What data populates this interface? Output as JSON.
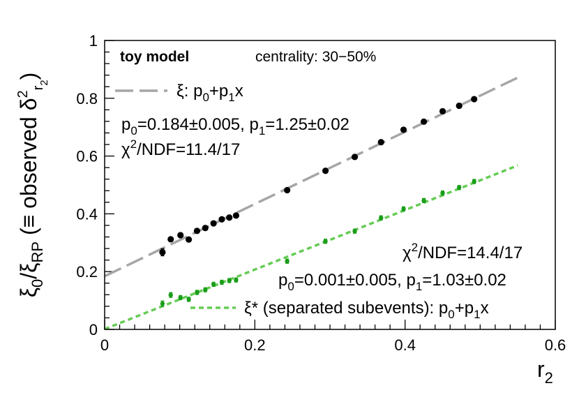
{
  "chart_data": {
    "type": "scatter",
    "xlabel": "r",
    "xlabel_sub": "2",
    "ylabel": "ξ₀/ξ_RP (≡ observed δ²_r₂)",
    "xlim": [
      0,
      0.6
    ],
    "ylim": [
      0,
      1
    ],
    "xticks": [
      {
        "value": 0,
        "label": "0"
      },
      {
        "value": 0.2,
        "label": "0.2"
      },
      {
        "value": 0.4,
        "label": "0.4"
      },
      {
        "value": 0.6,
        "label": "0.6"
      }
    ],
    "yticks": [
      {
        "value": 0,
        "label": "0"
      },
      {
        "value": 0.2,
        "label": "0.2"
      },
      {
        "value": 0.4,
        "label": "0.4"
      },
      {
        "value": 0.6,
        "label": "0.6"
      },
      {
        "value": 0.8,
        "label": "0.8"
      },
      {
        "value": 1,
        "label": "1"
      }
    ],
    "texts": {
      "model": "toy model",
      "centrality": "centrality: 30−50%"
    },
    "series": [
      {
        "name": "xi",
        "color": "#000000",
        "points": [
          {
            "x": 0.077,
            "y": 0.267,
            "err": 0.012
          },
          {
            "x": 0.088,
            "y": 0.312,
            "err": 0.007
          },
          {
            "x": 0.101,
            "y": 0.326,
            "err": 0.007
          },
          {
            "x": 0.112,
            "y": 0.311,
            "err": 0.007
          },
          {
            "x": 0.123,
            "y": 0.341,
            "err": 0.006
          },
          {
            "x": 0.134,
            "y": 0.351,
            "err": 0.006
          },
          {
            "x": 0.145,
            "y": 0.367,
            "err": 0.006
          },
          {
            "x": 0.156,
            "y": 0.381,
            "err": 0.006
          },
          {
            "x": 0.166,
            "y": 0.387,
            "err": 0.006
          },
          {
            "x": 0.175,
            "y": 0.394,
            "err": 0.006
          },
          {
            "x": 0.243,
            "y": 0.482,
            "err": 0.005
          },
          {
            "x": 0.294,
            "y": 0.549,
            "err": 0.005
          },
          {
            "x": 0.333,
            "y": 0.597,
            "err": 0.005
          },
          {
            "x": 0.368,
            "y": 0.648,
            "err": 0.005
          },
          {
            "x": 0.398,
            "y": 0.691,
            "err": 0.005
          },
          {
            "x": 0.425,
            "y": 0.719,
            "err": 0.005
          },
          {
            "x": 0.45,
            "y": 0.755,
            "err": 0.005
          },
          {
            "x": 0.472,
            "y": 0.774,
            "err": 0.005
          },
          {
            "x": 0.492,
            "y": 0.797,
            "err": 0.005
          }
        ],
        "fit": {
          "p0": 0.184,
          "p1": 1.25,
          "x_range": [
            0,
            0.55
          ],
          "color": "#a6a6a6",
          "style": "long-dash",
          "legend_label": "ξ: p",
          "legend_sub1": "0",
          "legend_plus": "+p",
          "legend_sub2": "1",
          "legend_x": "x",
          "params_a": "p",
          "params_a_sub": "0",
          "params_b": "=0.184±0.005, p",
          "params_b_sub": "1",
          "params_c": "=1.25±0.02",
          "chi_chi": "χ",
          "chi_sup": "2",
          "chi_rest": "/NDF=11.4/17"
        }
      },
      {
        "name": "xi_star",
        "color": "#1a9e1a",
        "points": [
          {
            "x": 0.077,
            "y": 0.089,
            "err": 0.009
          },
          {
            "x": 0.088,
            "y": 0.119,
            "err": 0.008
          },
          {
            "x": 0.101,
            "y": 0.11,
            "err": 0.007
          },
          {
            "x": 0.112,
            "y": 0.104,
            "err": 0.007
          },
          {
            "x": 0.123,
            "y": 0.128,
            "err": 0.007
          },
          {
            "x": 0.134,
            "y": 0.137,
            "err": 0.007
          },
          {
            "x": 0.145,
            "y": 0.156,
            "err": 0.007
          },
          {
            "x": 0.156,
            "y": 0.163,
            "err": 0.007
          },
          {
            "x": 0.166,
            "y": 0.169,
            "err": 0.007
          },
          {
            "x": 0.175,
            "y": 0.171,
            "err": 0.007
          },
          {
            "x": 0.243,
            "y": 0.236,
            "err": 0.007
          },
          {
            "x": 0.294,
            "y": 0.305,
            "err": 0.007
          },
          {
            "x": 0.333,
            "y": 0.34,
            "err": 0.007
          },
          {
            "x": 0.368,
            "y": 0.386,
            "err": 0.007
          },
          {
            "x": 0.398,
            "y": 0.417,
            "err": 0.007
          },
          {
            "x": 0.425,
            "y": 0.446,
            "err": 0.007
          },
          {
            "x": 0.45,
            "y": 0.472,
            "err": 0.007
          },
          {
            "x": 0.472,
            "y": 0.491,
            "err": 0.007
          },
          {
            "x": 0.492,
            "y": 0.512,
            "err": 0.007
          }
        ],
        "fit": {
          "p0": 0.001,
          "p1": 1.03,
          "x_range": [
            0,
            0.55
          ],
          "color": "#66cc55",
          "style": "short-dash",
          "legend_label": "ξ* (separated subevents): p",
          "legend_sub1": "0",
          "legend_plus": "+p",
          "legend_sub2": "1",
          "legend_x": "x",
          "params_a": "p",
          "params_a_sub": "0",
          "params_b": "=0.001±0.005, p",
          "params_b_sub": "1",
          "params_c": "=1.03±0.02",
          "chi_chi": "χ",
          "chi_sup": "2",
          "chi_rest": "/NDF=14.4/17"
        }
      }
    ]
  }
}
